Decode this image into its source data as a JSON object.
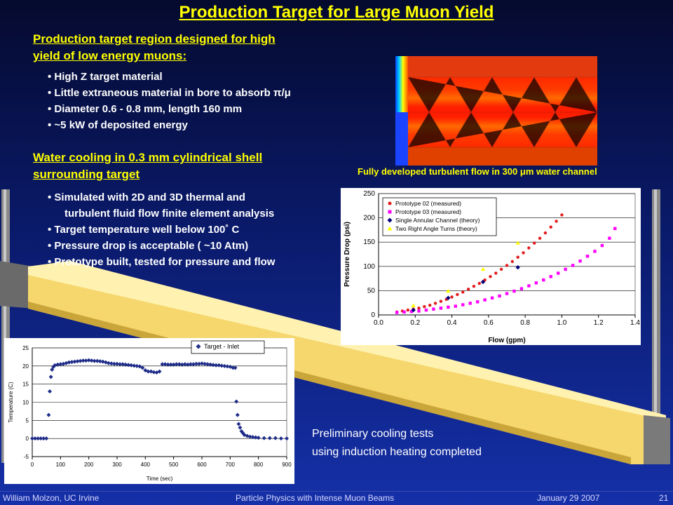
{
  "title": "Production Target for Large Muon Yield",
  "section1": {
    "heading_line1": "Production target region designed for high",
    "heading_line2": "yield of low energy muons:",
    "bullets": [
      "High Z target material",
      "Little extraneous material in bore to absorb π/μ",
      "Diameter 0.6 - 0.8 mm, length 160 mm",
      "~5 kW of deposited energy"
    ]
  },
  "section2": {
    "heading_line1": "Water cooling in 0.3 mm cylindrical shell",
    "heading_line2": "surrounding target",
    "bullets_line1": "Simulated with 2D and 3D thermal and",
    "bullets_line1b": "turbulent fluid flow finite element analysis",
    "bullets": [
      "Target temperature well below 100˚ C",
      "Pressure drop is acceptable ( ~10 Atm)",
      "Prototype built, tested for pressure and flow"
    ]
  },
  "flow_caption": "Fully developed turbulent flow in 300 μm water channel",
  "preliminary_line1": "Preliminary cooling tests",
  "preliminary_line2": "using induction heating completed",
  "footer": {
    "author": "William  Molzon, UC Irvine",
    "talk": "Particle Physics with Intense Muon Beams",
    "date": "January  29  2007",
    "page": "21"
  },
  "colors": {
    "title": "#ffff00",
    "background": "#0a1a6a",
    "target_rod": "#f5d76e",
    "proto02": "#e31a1c",
    "proto03": "#ff00ff",
    "single_annular": "#00007a",
    "right_angle": "#ffff00"
  },
  "chart_data": [
    {
      "type": "scatter",
      "xlabel": "Flow (gpm)",
      "ylabel": "Pressure Drop (psi)",
      "xlim": [
        0.0,
        1.4
      ],
      "ylim": [
        0,
        250
      ],
      "xticks": [
        "0.0",
        "0.2",
        "0.4",
        "0.6",
        "0.8",
        "1.0",
        "1.2",
        "1.4"
      ],
      "yticks": [
        "0",
        "50",
        "100",
        "150",
        "200",
        "250"
      ],
      "grid": "horizontal",
      "legend_position": "top-left",
      "series": [
        {
          "name": "Prototype 02 (measured)",
          "color": "#e31a1c",
          "marker": "circle",
          "x": [
            0.1,
            0.13,
            0.16,
            0.19,
            0.22,
            0.25,
            0.28,
            0.31,
            0.34,
            0.37,
            0.4,
            0.43,
            0.46,
            0.49,
            0.52,
            0.55,
            0.58,
            0.61,
            0.64,
            0.67,
            0.7,
            0.73,
            0.76,
            0.79,
            0.82,
            0.85,
            0.88,
            0.91,
            0.94,
            0.97,
            1.0
          ],
          "y": [
            6,
            8,
            10,
            12,
            14,
            17,
            20,
            24,
            28,
            32,
            37,
            42,
            47,
            53,
            59,
            65,
            72,
            79,
            86,
            94,
            102,
            110,
            119,
            128,
            138,
            148,
            158,
            169,
            181,
            193,
            206
          ]
        },
        {
          "name": "Prototype 03 (measured)",
          "color": "#ff00ff",
          "marker": "square",
          "x": [
            0.1,
            0.14,
            0.18,
            0.22,
            0.26,
            0.3,
            0.34,
            0.38,
            0.42,
            0.46,
            0.5,
            0.54,
            0.58,
            0.62,
            0.66,
            0.7,
            0.74,
            0.78,
            0.82,
            0.86,
            0.9,
            0.94,
            0.98,
            1.02,
            1.06,
            1.1,
            1.14,
            1.18,
            1.22,
            1.26,
            1.29
          ],
          "y": [
            5,
            6,
            7,
            8,
            10,
            12,
            14,
            16,
            18,
            21,
            24,
            27,
            31,
            35,
            39,
            44,
            49,
            54,
            60,
            66,
            72,
            79,
            86,
            94,
            102,
            111,
            121,
            131,
            143,
            158,
            178
          ]
        },
        {
          "name": "Single Annular Channel (theory)",
          "color": "#00007a",
          "marker": "diamond",
          "x": [
            0.19,
            0.38,
            0.57,
            0.76
          ],
          "y": [
            10,
            35,
            68,
            98
          ]
        },
        {
          "name": "Two Right Angle Turns (theory)",
          "color": "#ffff00",
          "marker": "triangle",
          "x": [
            0.19,
            0.38,
            0.57,
            0.76
          ],
          "y": [
            19,
            49,
            94,
            148
          ]
        }
      ]
    },
    {
      "type": "scatter",
      "xlabel": "Time (sec)",
      "ylabel": "Temperature (C)",
      "xlim": [
        0,
        900
      ],
      "ylim": [
        -5,
        25
      ],
      "xticks": [
        "0",
        "100",
        "200",
        "300",
        "400",
        "500",
        "600",
        "700",
        "800",
        "900"
      ],
      "yticks": [
        "-5",
        "0",
        "5",
        "10",
        "15",
        "20",
        "25"
      ],
      "grid": "horizontal",
      "legend_position": "top-right",
      "series": [
        {
          "name": "Target - Inlet",
          "color": "#1f2d8a",
          "marker": "diamond",
          "x": [
            0,
            10,
            20,
            30,
            40,
            50,
            58,
            62,
            66,
            70,
            75,
            80,
            90,
            100,
            110,
            120,
            130,
            140,
            150,
            160,
            170,
            180,
            190,
            200,
            210,
            220,
            230,
            240,
            250,
            260,
            270,
            280,
            290,
            300,
            310,
            320,
            330,
            340,
            350,
            360,
            370,
            380,
            390,
            400,
            410,
            420,
            430,
            440,
            450,
            460,
            470,
            480,
            490,
            500,
            510,
            520,
            530,
            540,
            550,
            560,
            570,
            580,
            590,
            600,
            610,
            620,
            630,
            640,
            650,
            660,
            670,
            680,
            690,
            700,
            710,
            718,
            722,
            726,
            730,
            735,
            740,
            745,
            750,
            760,
            770,
            780,
            790,
            800,
            820,
            840,
            860,
            880,
            900
          ],
          "y": [
            0,
            0,
            0,
            0,
            0,
            0,
            6.5,
            13,
            17,
            19,
            19.8,
            20.2,
            20.4,
            20.5,
            20.6,
            20.8,
            21.0,
            21.1,
            21.2,
            21.3,
            21.4,
            21.5,
            21.5,
            21.6,
            21.5,
            21.4,
            21.4,
            21.3,
            21.2,
            21.0,
            20.8,
            20.7,
            20.6,
            20.6,
            20.5,
            20.5,
            20.4,
            20.3,
            20.2,
            20.1,
            20.0,
            19.9,
            19.5,
            18.8,
            18.5,
            18.5,
            18.3,
            18.2,
            18.5,
            20.5,
            20.5,
            20.4,
            20.4,
            20.4,
            20.5,
            20.5,
            20.4,
            20.5,
            20.4,
            20.5,
            20.5,
            20.6,
            20.6,
            20.7,
            20.6,
            20.5,
            20.4,
            20.3,
            20.2,
            20.2,
            20.1,
            20.0,
            19.9,
            19.8,
            19.5,
            19.5,
            10.2,
            6.5,
            4.0,
            3.0,
            2.0,
            1.5,
            1.0,
            0.7,
            0.5,
            0.4,
            0.3,
            0.2,
            0.1,
            0.1,
            0.1,
            0.0,
            0.0
          ]
        }
      ]
    }
  ]
}
